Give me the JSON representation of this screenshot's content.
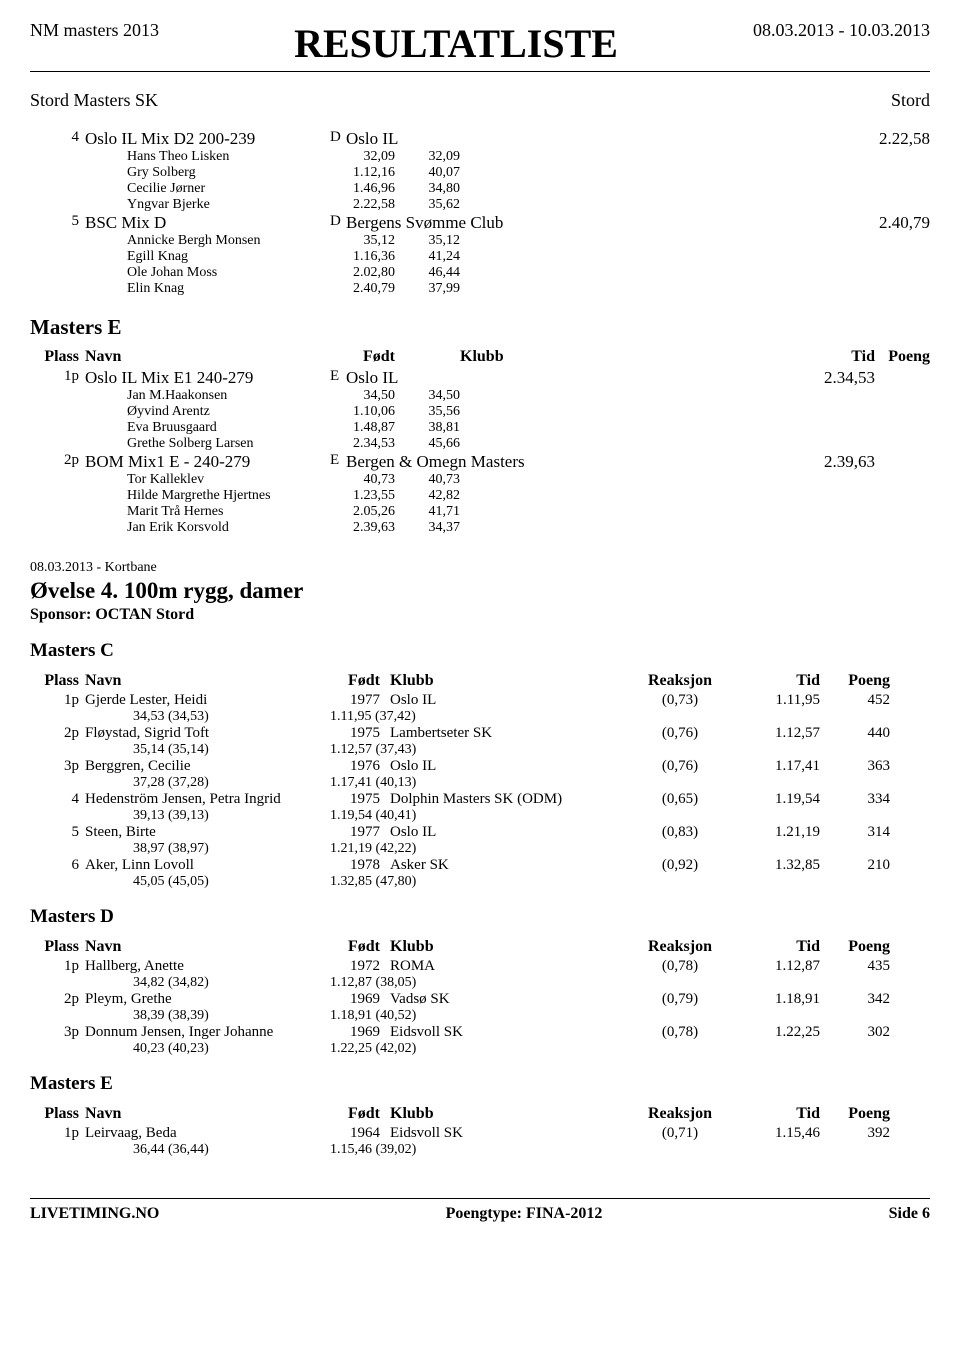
{
  "header": {
    "event_name": "NM masters 2013",
    "title": "RESULTATLISTE",
    "date_range": "08.03.2013 - 10.03.2013",
    "club": "Stord Masters SK",
    "location": "Stord"
  },
  "relay_results": [
    {
      "plass": "4",
      "team": "Oslo IL Mix D2 200-239",
      "grp": "D",
      "klubb": "Oslo IL",
      "tid": "2.22,58",
      "members": [
        {
          "name": "Hans Theo Lisken",
          "t1": "32,09",
          "t2": "32,09"
        },
        {
          "name": "Gry Solberg",
          "t1": "1.12,16",
          "t2": "40,07"
        },
        {
          "name": "Cecilie Jørner",
          "t1": "1.46,96",
          "t2": "34,80"
        },
        {
          "name": "Yngvar Bjerke",
          "t1": "2.22,58",
          "t2": "35,62"
        }
      ]
    },
    {
      "plass": "5",
      "team": "BSC Mix D",
      "grp": "D",
      "klubb": "Bergens Svømme Club",
      "tid": "2.40,79",
      "members": [
        {
          "name": "Annicke Bergh Monsen",
          "t1": "35,12",
          "t2": "35,12"
        },
        {
          "name": "Egill Knag",
          "t1": "1.16,36",
          "t2": "41,24"
        },
        {
          "name": "Ole Johan Moss",
          "t1": "2.02,80",
          "t2": "46,44"
        },
        {
          "name": "Elin Knag",
          "t1": "2.40,79",
          "t2": "37,99"
        }
      ]
    }
  ],
  "relay_e_title": "Masters E",
  "relay_e_headers": {
    "plass": "Plass",
    "navn": "Navn",
    "fodt": "Født",
    "klubb": "Klubb",
    "tid": "Tid",
    "poeng": "Poeng"
  },
  "relay_e": [
    {
      "plass": "1p",
      "team": "Oslo IL Mix E1 240-279",
      "grp": "E",
      "klubb": "Oslo IL",
      "tid": "2.34,53",
      "members": [
        {
          "name": "Jan M.Haakonsen",
          "t1": "34,50",
          "t2": "34,50"
        },
        {
          "name": "Øyvind Arentz",
          "t1": "1.10,06",
          "t2": "35,56"
        },
        {
          "name": "Eva Bruusgaard",
          "t1": "1.48,87",
          "t2": "38,81"
        },
        {
          "name": "Grethe Solberg Larsen",
          "t1": "2.34,53",
          "t2": "45,66"
        }
      ]
    },
    {
      "plass": "2p",
      "team": "BOM Mix1 E - 240-279",
      "grp": "E",
      "klubb": "Bergen & Omegn Masters",
      "tid": "2.39,63",
      "members": [
        {
          "name": "Tor Kalleklev",
          "t1": "40,73",
          "t2": "40,73"
        },
        {
          "name": "Hilde Margrethe Hjertnes",
          "t1": "1.23,55",
          "t2": "42,82"
        },
        {
          "name": "Marit Trå Hernes",
          "t1": "2.05,26",
          "t2": "41,71"
        },
        {
          "name": "Jan Erik Korsvold",
          "t1": "2.39,63",
          "t2": "34,37"
        }
      ]
    }
  ],
  "event4": {
    "date_line": "08.03.2013 - Kortbane",
    "title": "Øvelse 4. 100m rygg, damer",
    "sponsor": "Sponsor: OCTAN Stord"
  },
  "ind_headers": {
    "plass": "Plass",
    "navn": "Navn",
    "fodt": "Født",
    "klubb": "Klubb",
    "reaksjon": "Reaksjon",
    "tid": "Tid",
    "poeng": "Poeng"
  },
  "masters_c_title": "Masters C",
  "masters_c": [
    {
      "plass": "1p",
      "navn": "Gjerde Lester, Heidi",
      "fodt": "1977",
      "klubb": "Oslo IL",
      "reak": "(0,73)",
      "tid": "1.11,95",
      "poeng": "452",
      "s1": "34,53 (34,53)",
      "s2": "1.11,95 (37,42)"
    },
    {
      "plass": "2p",
      "navn": "Fløystad, Sigrid Toft",
      "fodt": "1975",
      "klubb": "Lambertseter SK",
      "reak": "(0,76)",
      "tid": "1.12,57",
      "poeng": "440",
      "s1": "35,14 (35,14)",
      "s2": "1.12,57 (37,43)"
    },
    {
      "plass": "3p",
      "navn": "Berggren, Cecilie",
      "fodt": "1976",
      "klubb": "Oslo IL",
      "reak": "(0,76)",
      "tid": "1.17,41",
      "poeng": "363",
      "s1": "37,28 (37,28)",
      "s2": "1.17,41 (40,13)"
    },
    {
      "plass": "4",
      "navn": "Hedenström Jensen, Petra Ingrid",
      "fodt": "1975",
      "klubb": "Dolphin Masters SK (ODM)",
      "reak": "(0,65)",
      "tid": "1.19,54",
      "poeng": "334",
      "s1": "39,13 (39,13)",
      "s2": "1.19,54 (40,41)"
    },
    {
      "plass": "5",
      "navn": "Steen, Birte",
      "fodt": "1977",
      "klubb": "Oslo IL",
      "reak": "(0,83)",
      "tid": "1.21,19",
      "poeng": "314",
      "s1": "38,97 (38,97)",
      "s2": "1.21,19 (42,22)"
    },
    {
      "plass": "6",
      "navn": "Aker, Linn Lovoll",
      "fodt": "1978",
      "klubb": "Asker SK",
      "reak": "(0,92)",
      "tid": "1.32,85",
      "poeng": "210",
      "s1": "45,05 (45,05)",
      "s2": "1.32,85 (47,80)"
    }
  ],
  "masters_d_title": "Masters D",
  "masters_d": [
    {
      "plass": "1p",
      "navn": "Hallberg, Anette",
      "fodt": "1972",
      "klubb": "ROMA",
      "reak": "(0,78)",
      "tid": "1.12,87",
      "poeng": "435",
      "s1": "34,82 (34,82)",
      "s2": "1.12,87 (38,05)"
    },
    {
      "plass": "2p",
      "navn": "Pleym, Grethe",
      "fodt": "1969",
      "klubb": "Vadsø SK",
      "reak": "(0,79)",
      "tid": "1.18,91",
      "poeng": "342",
      "s1": "38,39 (38,39)",
      "s2": "1.18,91 (40,52)"
    },
    {
      "plass": "3p",
      "navn": "Donnum Jensen, Inger Johanne",
      "fodt": "1969",
      "klubb": "Eidsvoll SK",
      "reak": "(0,78)",
      "tid": "1.22,25",
      "poeng": "302",
      "s1": "40,23 (40,23)",
      "s2": "1.22,25 (42,02)"
    }
  ],
  "masters_e2_title": "Masters E",
  "masters_e2": [
    {
      "plass": "1p",
      "navn": "Leirvaag, Beda",
      "fodt": "1964",
      "klubb": "Eidsvoll SK",
      "reak": "(0,71)",
      "tid": "1.15,46",
      "poeng": "392",
      "s1": "36,44 (36,44)",
      "s2": "1.15,46 (39,02)"
    }
  ],
  "footer": {
    "left": "LIVETIMING.NO",
    "center": "Poengtype: FINA-2012",
    "right": "Side 6"
  }
}
